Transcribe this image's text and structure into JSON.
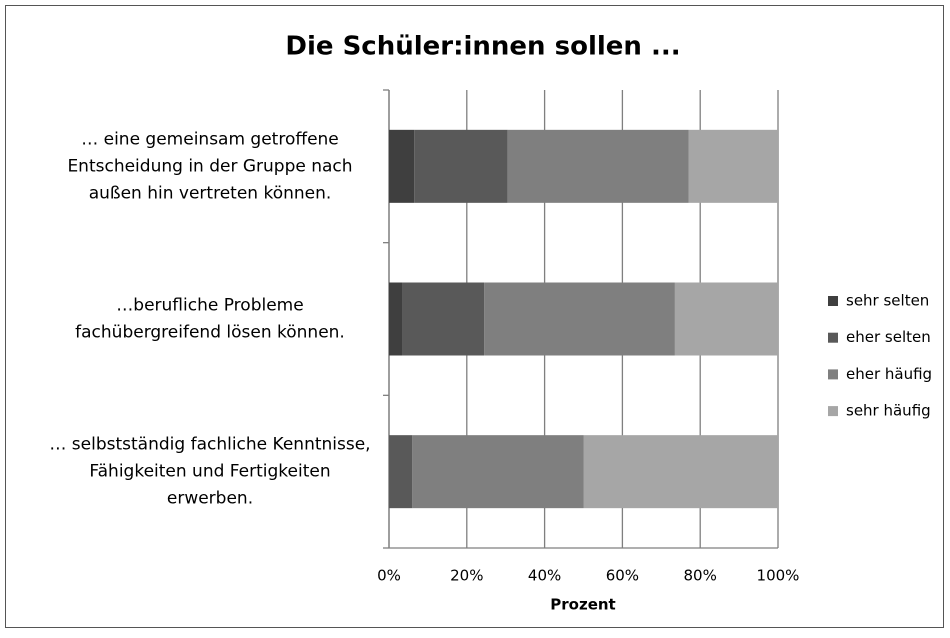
{
  "chart_data": {
    "type": "stacked-bar-horizontal",
    "title": "Die Schüler:innen sollen ...",
    "xlabel": "Prozent",
    "categories": [
      [
        "… eine gemeinsam getroffene",
        "Entscheidung in der Gruppe nach",
        "außen hin vertreten können."
      ],
      [
        "…berufliche Probleme",
        "fachübergreifend lösen können."
      ],
      [
        "… selbstständig fachliche Kenntnisse,",
        "Fähigkeiten und Fertigkeiten",
        "erwerben."
      ]
    ],
    "series": [
      {
        "name": "sehr selten",
        "color": "#3f3f3f",
        "values": [
          6.5,
          3.5,
          0
        ]
      },
      {
        "name": "eher selten",
        "color": "#595959",
        "values": [
          24,
          21,
          6
        ]
      },
      {
        "name": "eher häufig",
        "color": "#7f7f7f",
        "values": [
          46.5,
          49,
          44
        ]
      },
      {
        "name": "sehr häufig",
        "color": "#a6a6a6",
        "values": [
          23,
          26.5,
          50
        ]
      }
    ],
    "xlim": [
      0,
      100
    ],
    "xticks": [
      {
        "value": 0,
        "label": "0%"
      },
      {
        "value": 20,
        "label": "20%"
      },
      {
        "value": 40,
        "label": "40%"
      },
      {
        "value": 60,
        "label": "60%"
      },
      {
        "value": 80,
        "label": "80%"
      },
      {
        "value": 100,
        "label": "100%"
      }
    ],
    "grid": true,
    "legend": "right"
  }
}
